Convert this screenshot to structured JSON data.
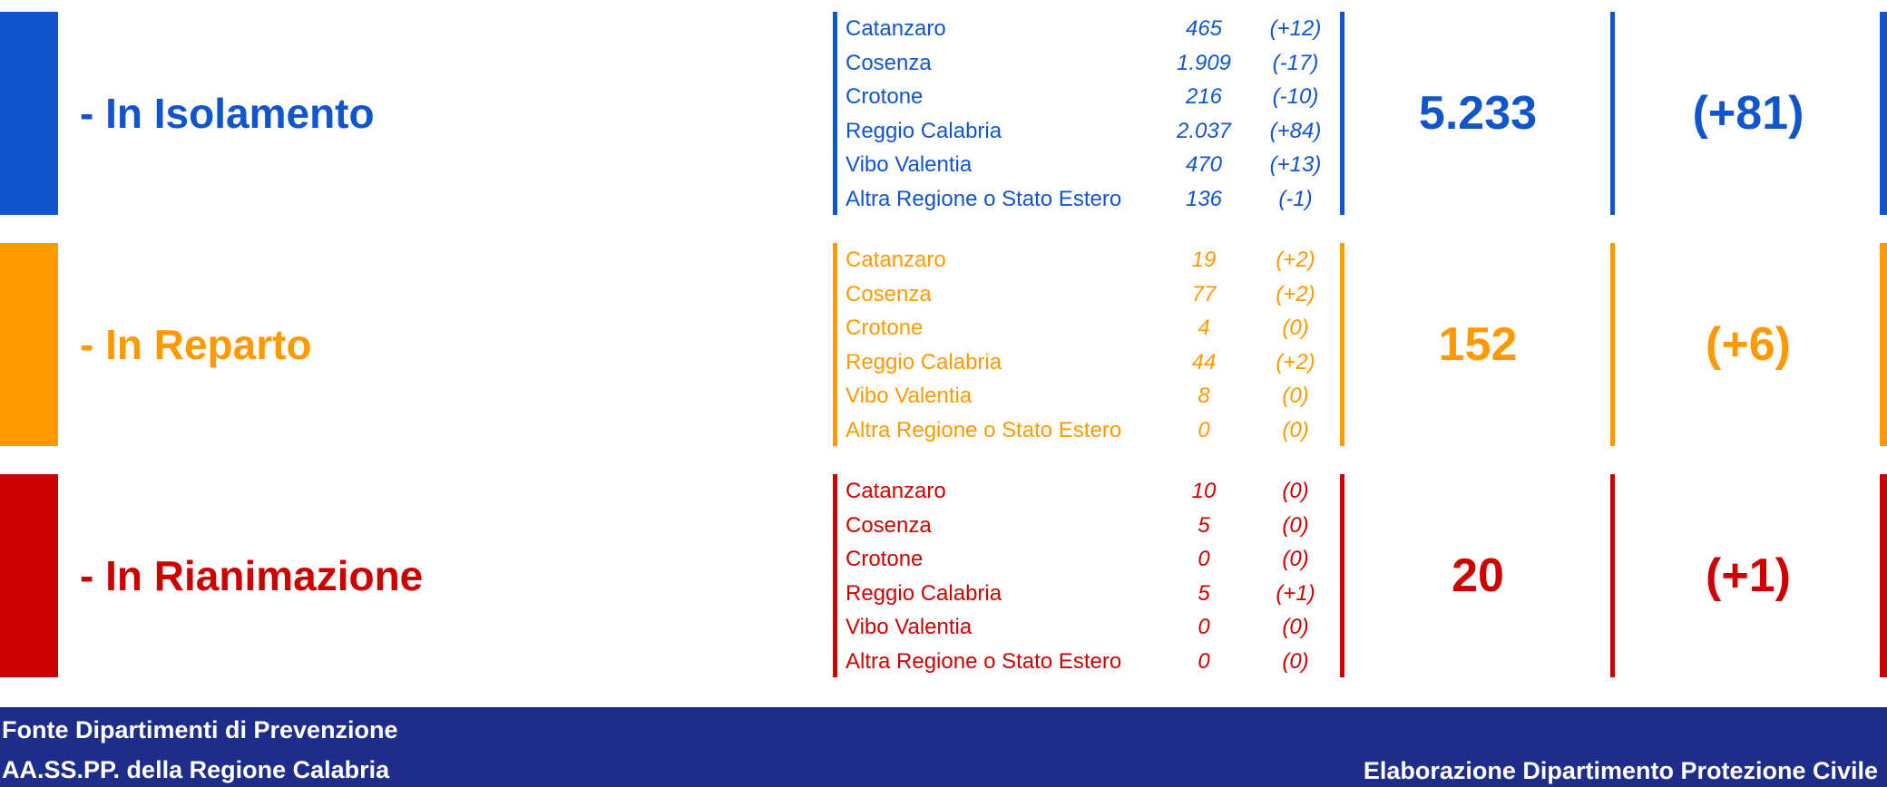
{
  "sections": [
    {
      "title": "- In Isolamento",
      "color": "#1155cc",
      "rows": [
        {
          "province": "Catanzaro",
          "value": "465",
          "delta": "(+12)"
        },
        {
          "province": "Cosenza",
          "value": "1.909",
          "delta": "(-17)"
        },
        {
          "province": "Crotone",
          "value": "216",
          "delta": "(-10)"
        },
        {
          "province": "Reggio Calabria",
          "value": "2.037",
          "delta": "(+84)"
        },
        {
          "province": "Vibo Valentia",
          "value": "470",
          "delta": "(+13)"
        },
        {
          "province": "Altra Regione o Stato Estero",
          "value": "136",
          "delta": "(-1)"
        }
      ],
      "total": "5.233",
      "total_delta": "(+81)"
    },
    {
      "title": "- In Reparto",
      "color": "#ff9900",
      "rows": [
        {
          "province": "Catanzaro",
          "value": "19",
          "delta": "(+2)"
        },
        {
          "province": "Cosenza",
          "value": "77",
          "delta": "(+2)"
        },
        {
          "province": "Crotone",
          "value": "4",
          "delta": "(0)"
        },
        {
          "province": "Reggio Calabria",
          "value": "44",
          "delta": "(+2)"
        },
        {
          "province": "Vibo Valentia",
          "value": "8",
          "delta": "(0)"
        },
        {
          "province": "Altra Regione o Stato Estero",
          "value": "0",
          "delta": "(0)"
        }
      ],
      "total": "152",
      "total_delta": "(+6)"
    },
    {
      "title": "- In Rianimazione",
      "color": "#cc0000",
      "rows": [
        {
          "province": "Catanzaro",
          "value": "10",
          "delta": "(0)"
        },
        {
          "province": "Cosenza",
          "value": "5",
          "delta": "(0)"
        },
        {
          "province": "Crotone",
          "value": "0",
          "delta": "(0)"
        },
        {
          "province": "Reggio Calabria",
          "value": "5",
          "delta": "(+1)"
        },
        {
          "province": "Vibo Valentia",
          "value": "0",
          "delta": "(0)"
        },
        {
          "province": "Altra Regione o Stato Estero",
          "value": "0",
          "delta": "(0)"
        }
      ],
      "total": "20",
      "total_delta": "(+1)"
    }
  ],
  "footer": {
    "source_line1": "Fonte Dipartimenti di Prevenzione",
    "source_line2": "AA.SS.PP.  della Regione Calabria",
    "credit": "Elaborazione Dipartimento Protezione Civile",
    "background": "#1f2d8a"
  }
}
